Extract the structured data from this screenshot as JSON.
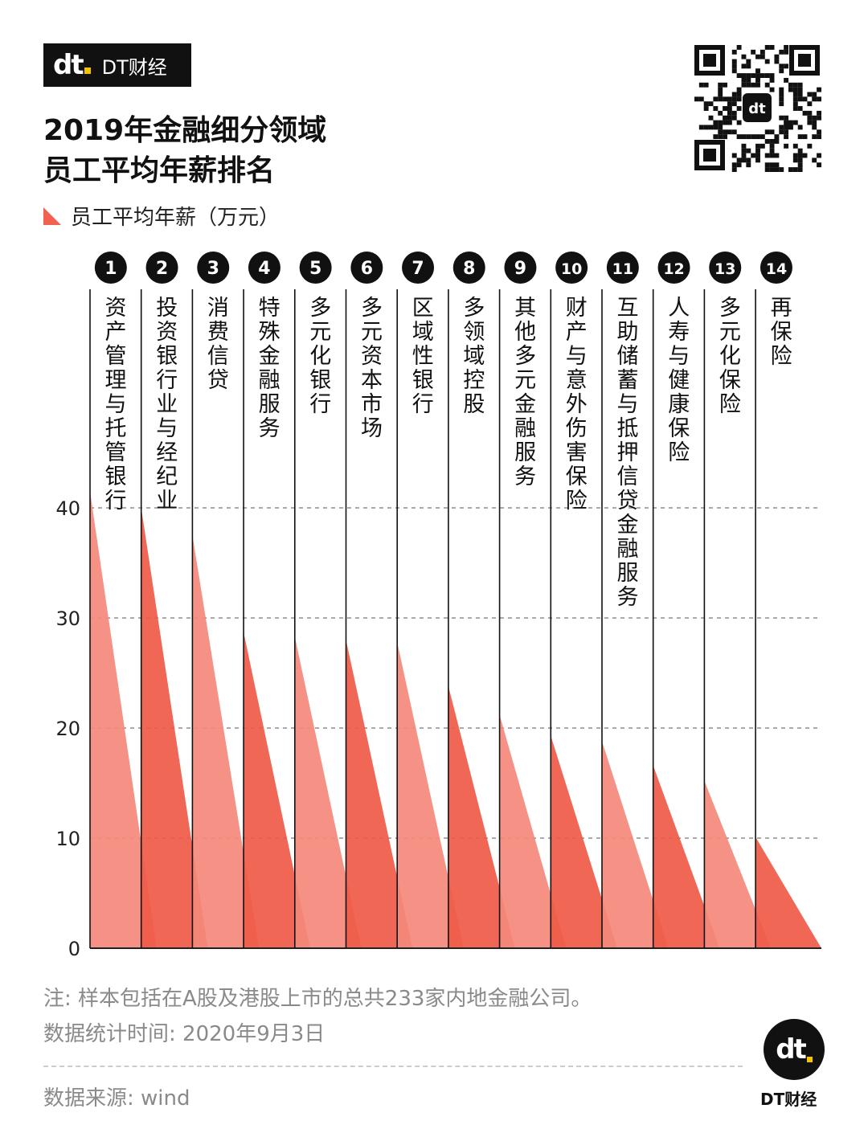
{
  "brand": {
    "logo": "dt",
    "name": "DT财经"
  },
  "title_lines": [
    "2019年金融细分领域",
    "员工平均年薪排名"
  ],
  "legend_label": "员工平均年薪（万元）",
  "colors": {
    "light": "#f4897b",
    "dark": "#ef5a48",
    "overlap": "#e8402f",
    "badge": "#111111",
    "accent": "#f5c400"
  },
  "chart_data": {
    "type": "bar",
    "title": "2019年金融细分领域员工平均年薪排名",
    "ylabel": "员工平均年薪（万元）",
    "ylim": [
      0,
      40
    ],
    "yticks": [
      "0",
      "10",
      "20",
      "30",
      "40"
    ],
    "grid": true,
    "ranks": [
      "1",
      "2",
      "3",
      "4",
      "5",
      "6",
      "7",
      "8",
      "9",
      "10",
      "11",
      "12",
      "13",
      "14"
    ],
    "categories": [
      "资产管理与托管银行",
      "投资银行业与经纪业",
      "消费信贷",
      "特殊金融服务",
      "多元化银行",
      "多元资本市场",
      "区域性银行",
      "多领域控股",
      "其他多元金融服务",
      "财产与意外伤害保险",
      "互助储蓄与抵押信贷金融服务",
      "人寿与健康保险",
      "多元化保险",
      "再保险"
    ],
    "values": [
      41.5,
      40.0,
      37.5,
      28.7,
      28.3,
      28.0,
      27.8,
      23.8,
      21.2,
      19.3,
      18.8,
      16.6,
      15.2,
      10.1
    ]
  },
  "notes": {
    "sample": "注: 样本包括在A股及港股上市的总共233家内地金融公司。",
    "date": "数据统计时间: 2020年9月3日",
    "source": "数据来源: wind"
  }
}
